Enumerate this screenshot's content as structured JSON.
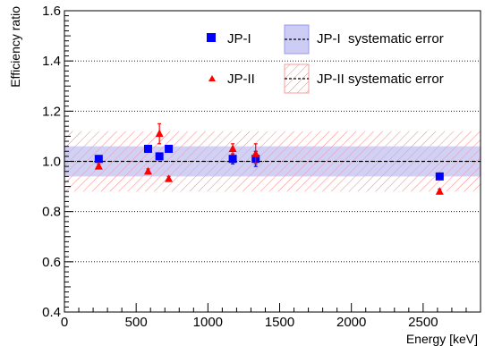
{
  "chart_data": {
    "type": "scatter",
    "xlabel": "Energy [keV]",
    "ylabel": "Efficiency ratio",
    "xlim": [
      0,
      2900
    ],
    "ylim": [
      0.4,
      1.6
    ],
    "xticks": [
      0,
      500,
      1000,
      1500,
      2000,
      2500
    ],
    "xtick_labels": [
      "0",
      "500",
      "1000",
      "1500",
      "2000",
      "2500"
    ],
    "yticks": [
      0.4,
      0.6,
      0.8,
      1.0,
      1.2,
      1.4,
      1.6
    ],
    "ytick_labels": [
      "0.4",
      "0.6",
      "0.8",
      "1.0",
      "1.2",
      "1.4",
      "1.6"
    ],
    "grid": "horizontal dotted",
    "reference_line": 1.0,
    "legend_position": "top-right",
    "series": [
      {
        "name": "JP-I",
        "marker": "square",
        "color": "#0000ff",
        "x": [
          239,
          583,
          662,
          727,
          1173,
          1333,
          2615
        ],
        "y": [
          1.01,
          1.05,
          1.02,
          1.05,
          1.01,
          1.01,
          0.94
        ],
        "yerr": [
          0.01,
          0.01,
          0.01,
          0.01,
          0.02,
          0.03,
          0.01
        ]
      },
      {
        "name": "JP-II",
        "marker": "triangle",
        "color": "#ff0000",
        "x": [
          239,
          583,
          662,
          727,
          1173,
          1333,
          2615
        ],
        "y": [
          0.98,
          0.96,
          1.11,
          0.93,
          1.05,
          1.03,
          0.88
        ],
        "yerr": [
          0.01,
          0.01,
          0.04,
          0.01,
          0.02,
          0.04,
          0.01
        ]
      }
    ],
    "bands": [
      {
        "name": "JP-I  systematic error",
        "center": 1.0,
        "low": 0.94,
        "high": 1.06,
        "fill": "#9999ee",
        "style": "solid"
      },
      {
        "name": "JP-II systematic error",
        "center": 1.0,
        "low": 0.88,
        "high": 1.12,
        "fill": "#ff9999",
        "style": "hatched"
      }
    ]
  }
}
